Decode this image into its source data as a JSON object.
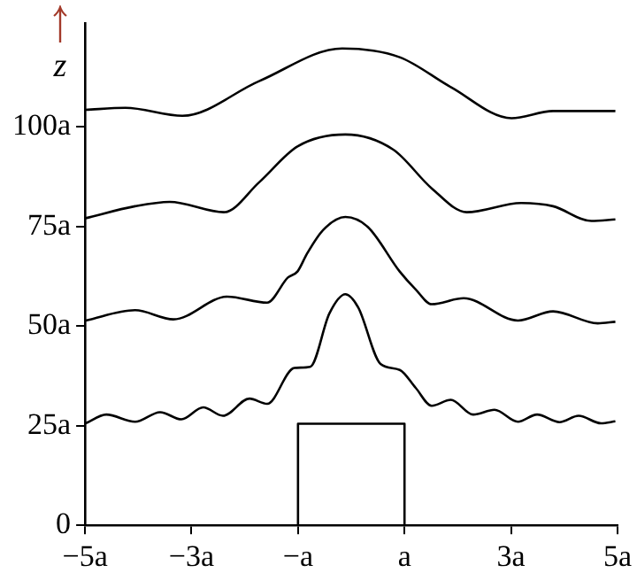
{
  "chart_data": {
    "type": "line",
    "ylabel": "z",
    "xlim": [
      -5,
      5
    ],
    "xticks": [
      {
        "value": -5,
        "label": "−5a"
      },
      {
        "value": -3,
        "label": "−3a"
      },
      {
        "value": -1,
        "label": "−a"
      },
      {
        "value": 1,
        "label": "a"
      },
      {
        "value": 3,
        "label": "3a"
      },
      {
        "value": 5,
        "label": "5a"
      }
    ],
    "ylim": [
      0,
      126
    ],
    "yticks": [
      0,
      {
        "value": 25,
        "label": "25a"
      },
      {
        "value": 50,
        "label": "50a"
      },
      {
        "value": 75,
        "label": "75a"
      },
      {
        "value": 100,
        "label": "100a"
      }
    ],
    "grid": false,
    "legend": false,
    "marker": "none",
    "line_style": "solid",
    "series": [
      {
        "color": "#000000",
        "x": [
          -5,
          -1,
          -1,
          1,
          1,
          5
        ],
        "values": [
          0,
          0,
          25.5,
          25.5,
          0,
          0
        ]
      },
      {
        "color": "#000000",
        "x": [
          -4.99,
          -4.6,
          -4.06,
          -3.59,
          -3.19,
          -2.78,
          -2.41,
          -1.91,
          -1.58,
          -1.07,
          -0.77,
          -0.41,
          -0.11,
          0.13,
          0.55,
          0.91,
          1.21,
          1.51,
          1.87,
          2.29,
          2.69,
          3.13,
          3.49,
          3.91,
          4.27,
          4.69,
          4.96
        ],
        "values": [
          25.6,
          27.8,
          26.0,
          28.4,
          26.6,
          29.6,
          27.5,
          31.8,
          30.5,
          39.5,
          39.8,
          53.2,
          58.0,
          54.7,
          40.5,
          39.0,
          34.5,
          30.0,
          31.5,
          27.8,
          29.0,
          26.0,
          27.8,
          25.9,
          27.5,
          25.6,
          26.1
        ]
      },
      {
        "color": "#000000",
        "x": [
          -4.99,
          -4.06,
          -3.34,
          -2.33,
          -1.58,
          -1.19,
          -1.01,
          -0.83,
          -0.53,
          -0.11,
          0.31,
          0.91,
          1.21,
          1.51,
          2.11,
          3.13,
          3.79,
          4.63,
          4.96
        ],
        "values": [
          51.4,
          54.0,
          51.7,
          57.4,
          55.9,
          62.2,
          63.7,
          68.2,
          74.1,
          77.4,
          74.9,
          63.7,
          59.2,
          55.5,
          57.0,
          51.4,
          53.7,
          50.7,
          51.1
        ]
      },
      {
        "color": "#000000",
        "x": [
          -4.99,
          -4.06,
          -3.41,
          -2.39,
          -1.73,
          -1.01,
          -0.11,
          0.79,
          1.51,
          2.17,
          3.19,
          3.79,
          4.51,
          4.96
        ],
        "values": [
          77.1,
          80.1,
          81.2,
          78.6,
          86.1,
          95.1,
          98.1,
          94.3,
          84.6,
          78.6,
          80.9,
          80.1,
          76.4,
          76.8
        ]
      },
      {
        "color": "#000000",
        "x": [
          -4.99,
          -4.24,
          -3.17,
          -1.73,
          -0.17,
          0.91,
          1.87,
          3.01,
          3.79,
          4.96
        ],
        "values": [
          104.3,
          104.8,
          102.8,
          111.5,
          119.7,
          117.5,
          110.0,
          102.2,
          104.0,
          104.0
        ]
      }
    ]
  }
}
